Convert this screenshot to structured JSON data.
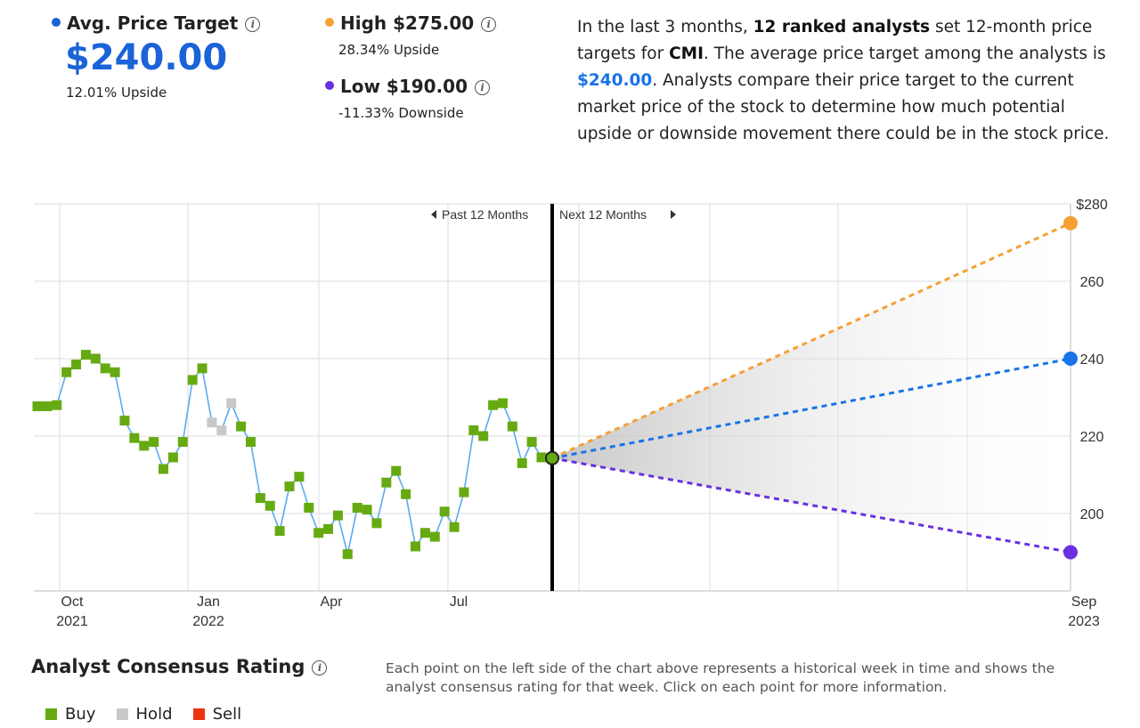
{
  "avg": {
    "label": "Avg. Price Target",
    "value": "$240.00",
    "sub": "12.01% Upside",
    "color": "#1a63d8"
  },
  "high": {
    "label": "High $275.00",
    "sub": "28.34% Upside",
    "color": "#f5a033"
  },
  "low": {
    "label": "Low $190.00",
    "sub": "-11.33% Downside",
    "color": "#6a2fe0"
  },
  "summary": {
    "t1": "In the last 3 months, ",
    "b1": "12 ranked analysts",
    "t2": " set 12-month price targets for ",
    "b2": "CMI",
    "t3": ". The average price target among the analysts is ",
    "b3": "$240.00",
    "t4": ". Analysts compare their price target to the current market price of the stock to determine how much potential upside or downside movement there could be in the stock price."
  },
  "consensus": {
    "title": "Analyst Consensus Rating",
    "note": "Each point on the left side of the chart above represents a historical week in time and shows the analyst consensus rating for that week. Click on each point for more information.",
    "legend": [
      {
        "label": "Buy",
        "color": "#66aa11"
      },
      {
        "label": "Hold",
        "color": "#c8c8c8"
      },
      {
        "label": "Sell",
        "color": "#ee3311"
      }
    ]
  },
  "chart_data": {
    "type": "line",
    "past_label": "Past 12 Months",
    "next_label": "Next 12 Months",
    "ylim": [
      180,
      280
    ],
    "y_ticks": [
      "200",
      "220",
      "240",
      "260",
      "$280"
    ],
    "x_ticks": [
      {
        "line1": "Oct",
        "line2": "2021"
      },
      {
        "line1": "Jan",
        "line2": "2022"
      },
      {
        "line1": "Apr",
        "line2": ""
      },
      {
        "line1": "Jul",
        "line2": ""
      },
      {
        "line1": "Sep",
        "line2": "2023"
      }
    ],
    "history": {
      "name": "Weekly price",
      "color": "#5aaaf0",
      "values": [
        227.7,
        227.7,
        228,
        236.5,
        238.5,
        241,
        240,
        237.5,
        236.5,
        224,
        219.5,
        217.5,
        218.5,
        211.5,
        214.5,
        218.5,
        234.5,
        237.5,
        223.5,
        221.5,
        228.5,
        222.5,
        218.5,
        204,
        202,
        195.5,
        207,
        209.5,
        201.5,
        195,
        196,
        199.5,
        189.5,
        201.5,
        201,
        197.5,
        208,
        211,
        205,
        191.5,
        195,
        194,
        200.5,
        196.5,
        205.5,
        221.5,
        220,
        228,
        228.5,
        222.5,
        213,
        218.5,
        214.5
      ],
      "ratings": [
        "Buy",
        "Buy",
        "Buy",
        "Buy",
        "Buy",
        "Buy",
        "Buy",
        "Buy",
        "Buy",
        "Buy",
        "Buy",
        "Buy",
        "Buy",
        "Buy",
        "Buy",
        "Buy",
        "Buy",
        "Buy",
        "Hold",
        "Hold",
        "Hold",
        "Buy",
        "Buy",
        "Buy",
        "Buy",
        "Buy",
        "Buy",
        "Buy",
        "Buy",
        "Buy",
        "Buy",
        "Buy",
        "Buy",
        "Buy",
        "Buy",
        "Buy",
        "Buy",
        "Buy",
        "Buy",
        "Buy",
        "Buy",
        "Buy",
        "Buy",
        "Buy",
        "Buy",
        "Buy",
        "Buy",
        "Buy",
        "Buy",
        "Buy",
        "Buy",
        "Buy",
        "Buy"
      ]
    },
    "current_price": 214.3,
    "projections": [
      {
        "name": "High",
        "value": 275,
        "color": "#f5a033"
      },
      {
        "name": "Average",
        "value": 240,
        "color": "#1a73e8"
      },
      {
        "name": "Low",
        "value": 190,
        "color": "#6a2fe0"
      }
    ],
    "grid": true
  }
}
